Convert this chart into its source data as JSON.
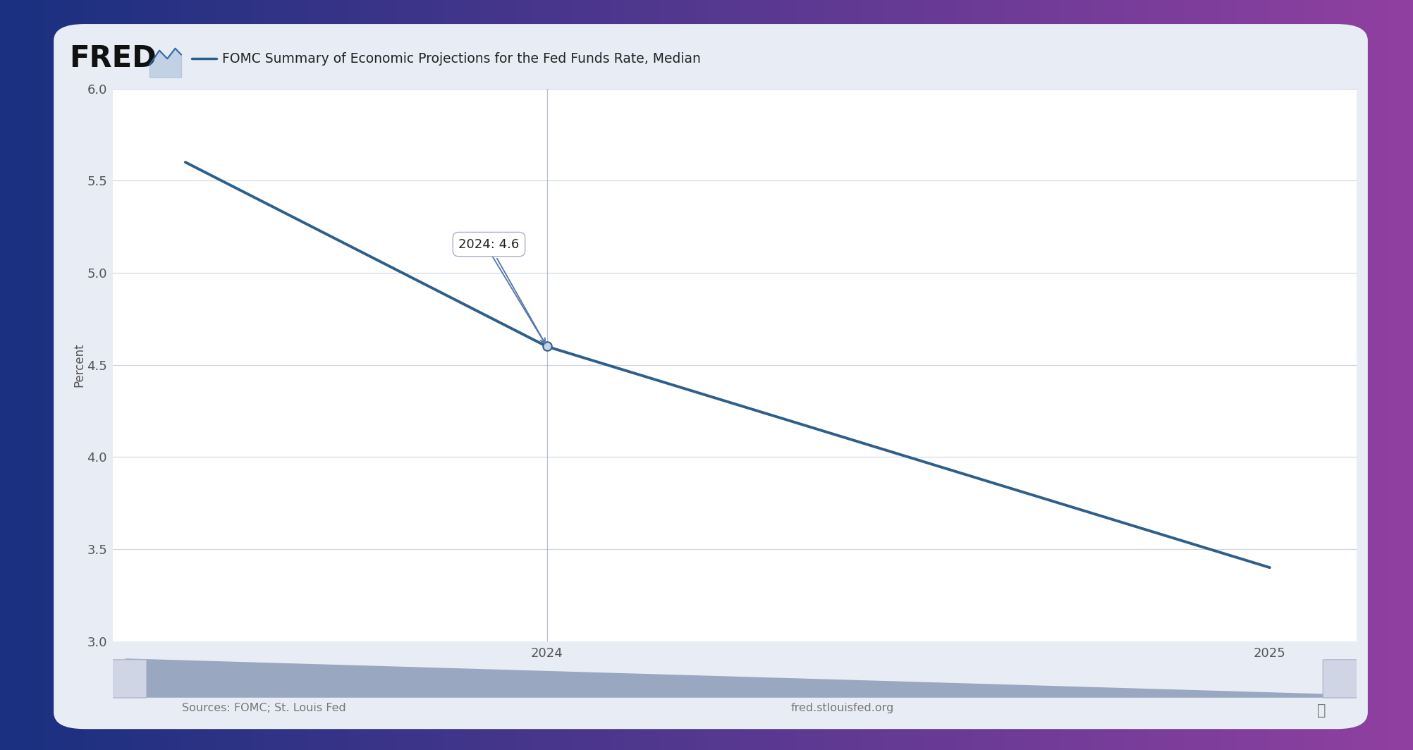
{
  "title": "FOMC Summary of Economic Projections for the Fed Funds Rate, Median",
  "ylabel": "Percent",
  "sources_text": "Sources: FOMC; St. Louis Fed",
  "website_text": "fred.stlouisfed.org",
  "line_color": "#2d5f8a",
  "line_width": 2.8,
  "x_data": [
    2023.5,
    2024.0,
    2025.0
  ],
  "y_data": [
    5.6,
    4.6,
    3.4
  ],
  "ylim": [
    3.0,
    6.0
  ],
  "xlim_left": 2023.4,
  "xlim_right": 2025.12,
  "yticks": [
    3.0,
    3.5,
    4.0,
    4.5,
    5.0,
    5.5,
    6.0
  ],
  "xtick_2024": 2024,
  "xtick_2025": 2025,
  "tooltip_x": 2024,
  "tooltip_y": 4.6,
  "tooltip_label_bold": "2024:",
  "tooltip_label_value": " 4.6",
  "bg_card": "#e8ecf4",
  "bg_plot": "#ffffff",
  "bg_gradient_left": "#1a3080",
  "bg_gradient_right": "#9040a0",
  "grid_color": "#d0d4e0",
  "vline_color": "#8899bb",
  "axis_label_color": "#555555",
  "tick_label_color": "#555555",
  "footer_color": "#777777",
  "scrollbar_bg": "#c0c8d8",
  "scrollbar_fill": "#8090b0",
  "scrollbar_handle": "#d0d5e5"
}
